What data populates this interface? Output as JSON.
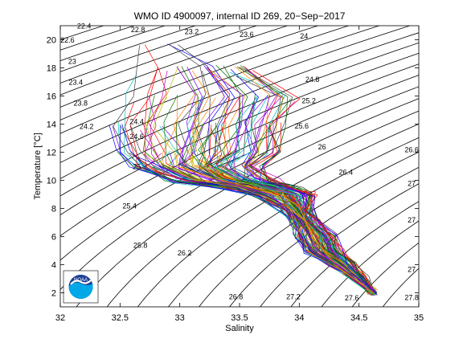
{
  "chart_data": {
    "type": "line",
    "title": "WMO ID 4900097, internal ID 269, 20−Sep−2017",
    "xlabel": "Salinity",
    "ylabel": "Temperature [°C]",
    "xlim": [
      32,
      35
    ],
    "ylim": [
      1,
      21
    ],
    "x_ticks": [
      "32",
      "32.5",
      "33",
      "33.5",
      "34",
      "34.5",
      "35"
    ],
    "y_ticks": [
      "2",
      "4",
      "6",
      "8",
      "10",
      "12",
      "14",
      "16",
      "18",
      "20"
    ],
    "grid": false,
    "density_contours": {
      "levels": [
        22.4,
        22.6,
        22.8,
        23,
        23.2,
        23.4,
        23.6,
        23.8,
        24,
        24.2,
        24.4,
        24.6,
        24.8,
        25,
        25.2,
        25.4,
        25.6,
        25.8,
        26,
        26.2,
        26.4,
        26.6,
        26.8,
        27,
        27.2,
        27.4,
        27.6,
        27.8
      ],
      "labels": [
        {
          "text": "22.4",
          "s": 32.2,
          "t": 20.8
        },
        {
          "text": "22.6",
          "s": 32.06,
          "t": 19.8
        },
        {
          "text": "22.8",
          "s": 32.65,
          "t": 20.55
        },
        {
          "text": "23",
          "s": 32.1,
          "t": 18.3
        },
        {
          "text": "23.2",
          "s": 33.1,
          "t": 20.4
        },
        {
          "text": "23.4",
          "s": 32.13,
          "t": 16.8
        },
        {
          "text": "23.6",
          "s": 33.56,
          "t": 20.2
        },
        {
          "text": "23.8",
          "s": 32.17,
          "t": 15.3
        },
        {
          "text": "24",
          "s": 34.04,
          "t": 20.1
        },
        {
          "text": "24.2",
          "s": 32.22,
          "t": 13.65
        },
        {
          "text": "24.4",
          "s": 32.64,
          "t": 14.0
        },
        {
          "text": "24.6",
          "s": 32.64,
          "t": 12.95
        },
        {
          "text": "24.8",
          "s": 34.11,
          "t": 17.0
        },
        {
          "text": "25",
          "s": 32.64,
          "t": 10.8
        },
        {
          "text": "25.2",
          "s": 34.08,
          "t": 15.5
        },
        {
          "text": "25.4",
          "s": 32.58,
          "t": 8.0
        },
        {
          "text": "25.6",
          "s": 34.02,
          "t": 13.7
        },
        {
          "text": "25.8",
          "s": 32.67,
          "t": 5.2
        },
        {
          "text": "26",
          "s": 34.19,
          "t": 12.2
        },
        {
          "text": "26.2",
          "s": 33.04,
          "t": 4.65
        },
        {
          "text": "26.4",
          "s": 34.39,
          "t": 10.4
        },
        {
          "text": "26.6",
          "s": 34.94,
          "t": 12.0
        },
        {
          "text": "26.8",
          "s": 33.47,
          "t": 1.55
        },
        {
          "text": "27",
          "s": 34.94,
          "t": 9.6
        },
        {
          "text": "27",
          "s": 34.94,
          "t": 7.0
        },
        {
          "text": "27",
          "s": 34.94,
          "t": 3.5
        },
        {
          "text": "27.2",
          "s": 33.95,
          "t": 1.55
        },
        {
          "text": "27.6",
          "s": 34.44,
          "t": 1.45
        },
        {
          "text": "27.8",
          "s": 34.94,
          "t": 1.5
        }
      ]
    },
    "profiles": {
      "count": 120,
      "colors": [
        "#0000ff",
        "#008000",
        "#ff0000",
        "#00bfbf",
        "#bf00bf",
        "#bfbf00",
        "#404040",
        "#ff8000",
        "#8000ff",
        "#006400"
      ],
      "envelope": [
        {
          "t": 20.0,
          "s_min": 32.7,
          "s_max": 33.1
        },
        {
          "t": 18.0,
          "s_min": 32.65,
          "s_max": 33.6
        },
        {
          "t": 16.0,
          "s_min": 32.55,
          "s_max": 34.0
        },
        {
          "t": 14.0,
          "s_min": 32.45,
          "s_max": 33.9
        },
        {
          "t": 12.0,
          "s_min": 32.5,
          "s_max": 33.85
        },
        {
          "t": 11.0,
          "s_min": 32.6,
          "s_max": 33.7
        },
        {
          "t": 10.0,
          "s_min": 32.9,
          "s_max": 33.8
        },
        {
          "t": 9.5,
          "s_min": 33.3,
          "s_max": 34.0
        },
        {
          "t": 9.0,
          "s_min": 33.6,
          "s_max": 34.15
        },
        {
          "t": 8.0,
          "s_min": 33.85,
          "s_max": 34.1
        },
        {
          "t": 7.0,
          "s_min": 33.95,
          "s_max": 34.15
        },
        {
          "t": 6.0,
          "s_min": 33.98,
          "s_max": 34.3
        },
        {
          "t": 5.0,
          "s_min": 34.05,
          "s_max": 34.35
        },
        {
          "t": 4.0,
          "s_min": 34.25,
          "s_max": 34.45
        },
        {
          "t": 3.0,
          "s_min": 34.45,
          "s_max": 34.55
        },
        {
          "t": 2.0,
          "s_min": 34.6,
          "s_max": 34.62
        }
      ]
    }
  },
  "logo": {
    "name": "noaa-logo",
    "text": "NOAA",
    "colors": {
      "dark_blue": "#1a3f95",
      "light_blue": "#00a8e8",
      "white": "#ffffff"
    }
  }
}
